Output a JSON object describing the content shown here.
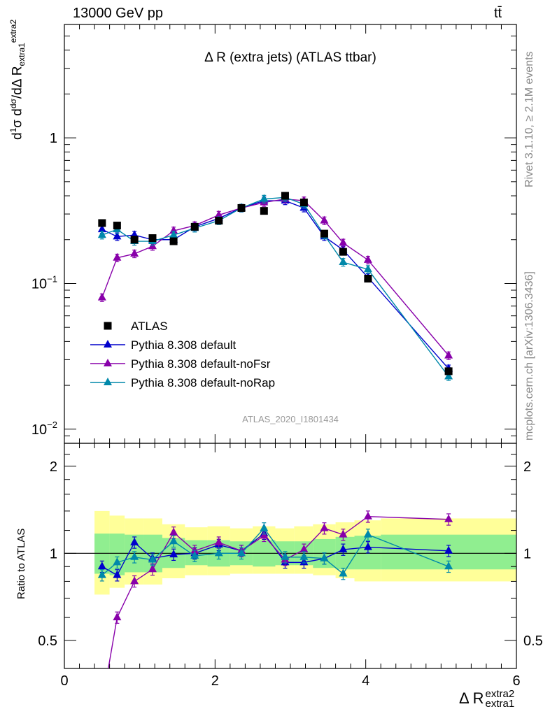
{
  "header": {
    "energy_label": "13000 GeV pp",
    "process_label": "tt̄"
  },
  "side_labels": {
    "rivet": "Rivet 3.1.10, ≥ 2.1M events",
    "mcplots": "mcplots.cern.ch [arXiv:1306.3436]"
  },
  "main_y_label": {
    "base": "d",
    "sup": "1",
    "frac": "dσ",
    "text": "dΔ R",
    "sub": "extra1",
    "supr": "extra2",
    "prefix": "σ d"
  },
  "ratio_ylabel": "Ratio to ATLAS",
  "x_label": {
    "main": "Δ R",
    "sup": "extra2",
    "sub": "extra1"
  },
  "colors": {
    "atlas": "#000000",
    "default": "#0000cc",
    "noFsr": "#8800aa",
    "noRap": "#0088aa",
    "band_inner": "#90ee90",
    "band_outer": "#ffff99"
  },
  "chart_data": {
    "type": "line",
    "title": "Δ R (extra jets) (ATLAS ttbar)",
    "analysis_label": "ATLAS_2020_I1801434",
    "xlim": [
      0,
      6
    ],
    "ylim": [
      0.008,
      6
    ],
    "y_scale": "log",
    "x_ticks": [
      0,
      2,
      4,
      6
    ],
    "y_ticks": [
      {
        "value": 0.01,
        "base": "10",
        "exp": "−2"
      },
      {
        "value": 0.1,
        "base": "10",
        "exp": "−1"
      },
      {
        "value": 1,
        "base": "1",
        "exp": ""
      }
    ],
    "ratio_ylim": [
      0.4,
      2.4
    ],
    "ratio_ticks": [
      0.5,
      1,
      2
    ],
    "legend": {
      "placement": "lower-left"
    },
    "bins": [
      [
        0.4,
        0.6
      ],
      [
        0.6,
        0.8
      ],
      [
        0.8,
        1.05
      ],
      [
        1.05,
        1.3
      ],
      [
        1.3,
        1.6
      ],
      [
        1.6,
        1.9
      ],
      [
        1.9,
        2.2
      ],
      [
        2.2,
        2.5
      ],
      [
        2.5,
        2.8
      ],
      [
        2.8,
        3.05
      ],
      [
        3.05,
        3.3
      ],
      [
        3.3,
        3.6
      ],
      [
        3.6,
        3.85
      ],
      [
        3.85,
        4.2
      ],
      [
        4.2,
        6.0
      ]
    ],
    "series": [
      {
        "name": "ATLAS",
        "marker": "square",
        "x": [
          0.5,
          0.7,
          0.93,
          1.17,
          1.45,
          1.73,
          2.05,
          2.35,
          2.65,
          2.93,
          3.18,
          3.45,
          3.7,
          4.03,
          5.1
        ],
        "values": [
          0.26,
          0.25,
          0.2,
          0.205,
          0.195,
          0.245,
          0.27,
          0.33,
          0.315,
          0.4,
          0.36,
          0.22,
          0.165,
          0.108,
          0.025
        ]
      },
      {
        "name": "Pythia 8.308 default",
        "marker": "triangle",
        "x": [
          0.5,
          0.7,
          0.93,
          1.17,
          1.45,
          1.73,
          2.05,
          2.35,
          2.65,
          2.93,
          3.18,
          3.45,
          3.7,
          4.03,
          5.1
        ],
        "values": [
          0.235,
          0.21,
          0.215,
          0.2,
          0.2,
          0.245,
          0.28,
          0.33,
          0.37,
          0.37,
          0.33,
          0.21,
          0.17,
          0.11,
          0.026
        ]
      },
      {
        "name": "Pythia 8.308 default-noFsr",
        "marker": "triangle",
        "x": [
          0.5,
          0.7,
          0.93,
          1.17,
          1.45,
          1.73,
          2.05,
          2.35,
          2.65,
          2.93,
          3.18,
          3.45,
          3.7,
          4.03,
          5.1
        ],
        "values": [
          0.08,
          0.15,
          0.16,
          0.18,
          0.23,
          0.25,
          0.295,
          0.33,
          0.36,
          0.38,
          0.37,
          0.27,
          0.19,
          0.145,
          0.032
        ]
      },
      {
        "name": "Pythia 8.308 default-noRap",
        "marker": "triangle",
        "x": [
          0.5,
          0.7,
          0.93,
          1.17,
          1.45,
          1.73,
          2.05,
          2.35,
          2.65,
          2.93,
          3.18,
          3.45,
          3.7,
          4.03,
          5.1
        ],
        "values": [
          0.215,
          0.235,
          0.195,
          0.195,
          0.215,
          0.24,
          0.27,
          0.33,
          0.38,
          0.39,
          0.35,
          0.215,
          0.14,
          0.125,
          0.023
        ]
      }
    ],
    "ratio_series": [
      {
        "name": "Pythia 8.308 default",
        "x": [
          0.5,
          0.7,
          0.93,
          1.17,
          1.45,
          1.73,
          2.05,
          2.35,
          2.65,
          2.93,
          3.18,
          3.45,
          3.7,
          4.03,
          5.1
        ],
        "values": [
          0.9,
          0.84,
          1.09,
          0.96,
          0.99,
          1.0,
          1.07,
          1.02,
          1.17,
          0.93,
          0.93,
          0.96,
          1.03,
          1.05,
          1.02
        ]
      },
      {
        "name": "Pythia 8.308 default-noFsr",
        "x": [
          0.5,
          0.7,
          0.93,
          1.17,
          1.45,
          1.73,
          2.05,
          2.35,
          2.65,
          2.93,
          3.18,
          3.45,
          3.7,
          4.03,
          5.1
        ],
        "values": [
          0.3,
          0.6,
          0.8,
          0.88,
          1.18,
          1.02,
          1.09,
          1.02,
          1.15,
          0.95,
          1.03,
          1.22,
          1.16,
          1.34,
          1.31
        ]
      },
      {
        "name": "Pythia 8.308 default-noRap",
        "x": [
          0.5,
          0.7,
          0.93,
          1.17,
          1.45,
          1.73,
          2.05,
          2.35,
          2.65,
          2.93,
          3.18,
          3.45,
          3.7,
          4.03,
          5.1
        ],
        "values": [
          0.84,
          0.93,
          0.97,
          0.95,
          1.1,
          0.98,
          1.0,
          1.0,
          1.22,
          0.97,
          0.97,
          0.96,
          0.85,
          1.16,
          0.9
        ]
      }
    ],
    "ratio_bands": {
      "inner_low": [
        0.85,
        0.84,
        0.86,
        0.86,
        0.89,
        0.91,
        0.9,
        0.91,
        0.9,
        0.91,
        0.91,
        0.89,
        0.88,
        0.88,
        0.88
      ],
      "inner_high": [
        1.17,
        1.17,
        1.16,
        1.16,
        1.13,
        1.11,
        1.11,
        1.1,
        1.11,
        1.1,
        1.1,
        1.12,
        1.14,
        1.15,
        1.16
      ],
      "outer_low": [
        0.72,
        0.76,
        0.78,
        0.78,
        0.82,
        0.84,
        0.84,
        0.85,
        0.85,
        0.85,
        0.85,
        0.84,
        0.82,
        0.8,
        0.8
      ],
      "outer_high": [
        1.4,
        1.35,
        1.32,
        1.32,
        1.26,
        1.23,
        1.24,
        1.22,
        1.24,
        1.22,
        1.24,
        1.26,
        1.28,
        1.3,
        1.32
      ]
    }
  }
}
